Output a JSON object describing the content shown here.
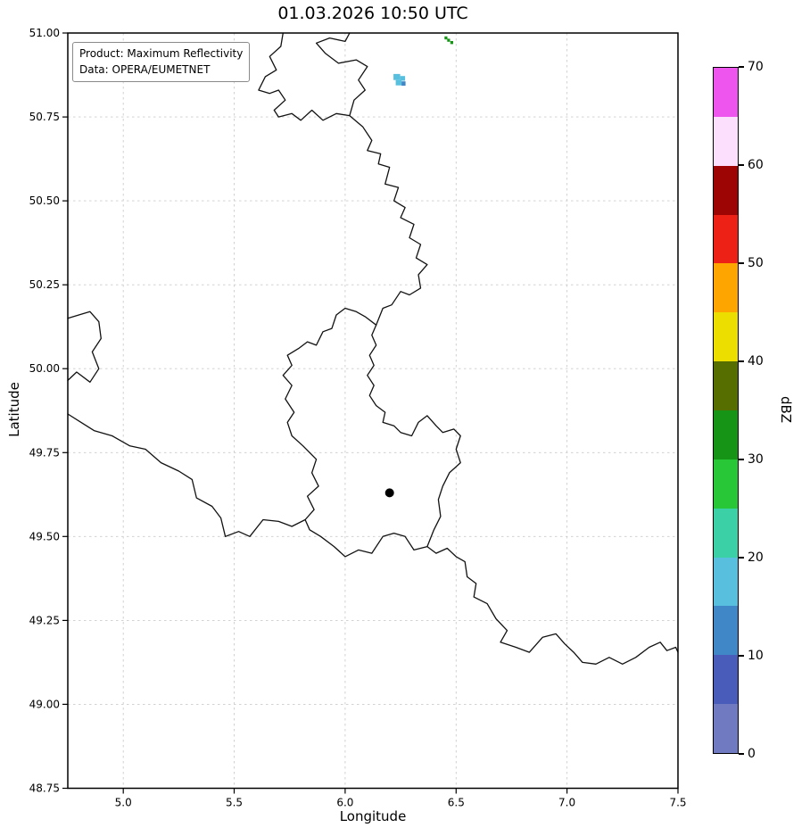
{
  "annotation": {
    "line1": "Product: Maximum Reflectivity",
    "line2": "Data: OPERA/EUMETNET"
  },
  "chart_data": {
    "type": "heatmap",
    "title": "01.03.2026 10:50 UTC",
    "xlabel": "Longitude",
    "ylabel": "Latitude",
    "xlim": [
      4.75,
      7.5
    ],
    "ylim": [
      48.75,
      51.0
    ],
    "grid": true,
    "xtick_values": [
      5.0,
      5.5,
      6.0,
      6.5,
      7.0,
      7.5
    ],
    "xtick_labels": [
      "5.0",
      "5.5",
      "6.0",
      "6.5",
      "7.0",
      "7.5"
    ],
    "ytick_values": [
      51.0,
      50.75,
      50.5,
      50.25,
      50.0,
      49.75,
      49.5,
      49.25,
      49.0,
      48.75
    ],
    "ytick_labels": [
      "51.00",
      "50.75",
      "50.50",
      "50.25",
      "50.00",
      "49.75",
      "49.50",
      "49.25",
      "49.00",
      "48.75"
    ],
    "colorbar": {
      "label": "dBZ",
      "min": 0,
      "max": 70,
      "band_size": 5,
      "tick_values": [
        0,
        10,
        20,
        30,
        40,
        50,
        60,
        70
      ],
      "colors": [
        "#707ac1",
        "#4a5cb9",
        "#3f87c6",
        "#58bfdf",
        "#3bd0a5",
        "#27c737",
        "#169416",
        "#566e00",
        "#ecdf00",
        "#ffa500",
        "#ee2116",
        "#9d0404",
        "#fcdffc",
        "#ee55ee"
      ]
    },
    "radar_site": {
      "lon": 6.2,
      "lat": 49.63
    },
    "echoes": [
      {
        "lon": 6.218,
        "lat": 50.878,
        "w": 0.03,
        "h": 0.018,
        "dbz": 16
      },
      {
        "lon": 6.248,
        "lat": 50.872,
        "w": 0.022,
        "h": 0.014,
        "dbz": 16
      },
      {
        "lon": 6.228,
        "lat": 50.86,
        "w": 0.026,
        "h": 0.016,
        "dbz": 16
      },
      {
        "lon": 6.254,
        "lat": 50.856,
        "w": 0.018,
        "h": 0.013,
        "dbz": 12
      },
      {
        "lon": 6.448,
        "lat": 50.99,
        "w": 0.013,
        "h": 0.009,
        "dbz": 32
      },
      {
        "lon": 6.46,
        "lat": 50.983,
        "w": 0.013,
        "h": 0.009,
        "dbz": 32
      },
      {
        "lon": 6.474,
        "lat": 50.976,
        "w": 0.013,
        "h": 0.009,
        "dbz": 32
      }
    ],
    "borders": [
      {
        "name": "belgium-netherlands",
        "points": [
          [
            5.72,
            51.0
          ],
          [
            5.71,
            50.96
          ],
          [
            5.66,
            50.93
          ],
          [
            5.69,
            50.89
          ],
          [
            5.64,
            50.87
          ],
          [
            5.61,
            50.83
          ],
          [
            5.66,
            50.82
          ],
          [
            5.7,
            50.83
          ],
          [
            5.73,
            50.8
          ],
          [
            5.68,
            50.77
          ],
          [
            5.7,
            50.75
          ],
          [
            5.76,
            50.76
          ],
          [
            5.8,
            50.74
          ],
          [
            5.85,
            50.77
          ],
          [
            5.9,
            50.74
          ],
          [
            5.96,
            50.76
          ],
          [
            6.02,
            50.754
          ]
        ]
      },
      {
        "name": "netherlands-germany",
        "points": [
          [
            6.02,
            50.754
          ],
          [
            6.04,
            50.8
          ],
          [
            6.09,
            50.83
          ],
          [
            6.06,
            50.86
          ],
          [
            6.1,
            50.9
          ],
          [
            6.05,
            50.92
          ],
          [
            5.97,
            50.91
          ],
          [
            5.91,
            50.94
          ],
          [
            5.87,
            50.97
          ],
          [
            5.93,
            50.985
          ],
          [
            6.0,
            50.975
          ],
          [
            6.02,
            51.0
          ]
        ]
      },
      {
        "name": "belgium-germany",
        "points": [
          [
            6.02,
            50.754
          ],
          [
            6.08,
            50.72
          ],
          [
            6.12,
            50.68
          ],
          [
            6.1,
            50.65
          ],
          [
            6.16,
            50.64
          ],
          [
            6.15,
            50.61
          ],
          [
            6.2,
            50.6
          ],
          [
            6.18,
            50.55
          ],
          [
            6.24,
            50.54
          ],
          [
            6.22,
            50.5
          ],
          [
            6.27,
            50.48
          ],
          [
            6.25,
            50.45
          ],
          [
            6.31,
            50.43
          ],
          [
            6.29,
            50.39
          ],
          [
            6.34,
            50.37
          ],
          [
            6.32,
            50.33
          ],
          [
            6.37,
            50.31
          ],
          [
            6.33,
            50.28
          ],
          [
            6.34,
            50.24
          ],
          [
            6.29,
            50.22
          ],
          [
            6.25,
            50.23
          ],
          [
            6.21,
            50.19
          ],
          [
            6.17,
            50.18
          ],
          [
            6.14,
            50.13
          ]
        ]
      },
      {
        "name": "luxembourg",
        "points": [
          [
            6.14,
            50.13
          ],
          [
            6.12,
            50.1
          ],
          [
            6.14,
            50.07
          ],
          [
            6.11,
            50.04
          ],
          [
            6.13,
            50.01
          ],
          [
            6.1,
            49.98
          ],
          [
            6.13,
            49.95
          ],
          [
            6.11,
            49.92
          ],
          [
            6.14,
            49.89
          ],
          [
            6.18,
            49.87
          ],
          [
            6.17,
            49.84
          ],
          [
            6.22,
            49.83
          ],
          [
            6.25,
            49.81
          ],
          [
            6.3,
            49.8
          ],
          [
            6.33,
            49.84
          ],
          [
            6.37,
            49.86
          ],
          [
            6.41,
            49.83
          ],
          [
            6.44,
            49.81
          ],
          [
            6.49,
            49.82
          ],
          [
            6.52,
            49.8
          ],
          [
            6.5,
            49.76
          ],
          [
            6.52,
            49.72
          ],
          [
            6.47,
            49.69
          ],
          [
            6.44,
            49.65
          ],
          [
            6.42,
            49.61
          ],
          [
            6.43,
            49.56
          ],
          [
            6.4,
            49.52
          ],
          [
            6.37,
            49.47
          ],
          [
            6.31,
            49.46
          ],
          [
            6.27,
            49.5
          ],
          [
            6.22,
            49.51
          ],
          [
            6.17,
            49.5
          ],
          [
            6.12,
            49.45
          ],
          [
            6.06,
            49.46
          ],
          [
            6.0,
            49.44
          ],
          [
            5.95,
            49.47
          ],
          [
            5.89,
            49.5
          ],
          [
            5.84,
            49.52
          ],
          [
            5.82,
            49.55
          ],
          [
            5.86,
            49.58
          ],
          [
            5.83,
            49.62
          ],
          [
            5.88,
            49.65
          ],
          [
            5.85,
            49.69
          ],
          [
            5.87,
            49.73
          ],
          [
            5.81,
            49.77
          ],
          [
            5.76,
            49.8
          ],
          [
            5.74,
            49.84
          ],
          [
            5.77,
            49.87
          ],
          [
            5.73,
            49.91
          ],
          [
            5.76,
            49.95
          ],
          [
            5.72,
            49.98
          ],
          [
            5.76,
            50.01
          ],
          [
            5.74,
            50.04
          ],
          [
            5.79,
            50.06
          ],
          [
            5.83,
            50.08
          ],
          [
            5.87,
            50.07
          ],
          [
            5.9,
            50.11
          ],
          [
            5.94,
            50.12
          ],
          [
            5.96,
            50.16
          ],
          [
            6.0,
            50.18
          ],
          [
            6.05,
            50.17
          ],
          [
            6.09,
            50.155
          ],
          [
            6.14,
            50.13
          ]
        ]
      },
      {
        "name": "france-belgium-givet",
        "points": [
          [
            4.75,
            50.15
          ],
          [
            4.8,
            50.16
          ],
          [
            4.85,
            50.17
          ],
          [
            4.89,
            50.14
          ],
          [
            4.9,
            50.09
          ],
          [
            4.86,
            50.05
          ],
          [
            4.89,
            50.0
          ],
          [
            4.85,
            49.96
          ],
          [
            4.79,
            49.99
          ],
          [
            4.75,
            49.965
          ]
        ]
      },
      {
        "name": "france-belgium",
        "points": [
          [
            4.75,
            49.865
          ],
          [
            4.81,
            49.84
          ],
          [
            4.87,
            49.815
          ],
          [
            4.95,
            49.8
          ],
          [
            5.03,
            49.77
          ],
          [
            5.1,
            49.76
          ],
          [
            5.17,
            49.72
          ],
          [
            5.25,
            49.695
          ],
          [
            5.31,
            49.67
          ],
          [
            5.33,
            49.615
          ],
          [
            5.4,
            49.59
          ],
          [
            5.44,
            49.555
          ],
          [
            5.46,
            49.5
          ],
          [
            5.52,
            49.515
          ],
          [
            5.57,
            49.5
          ],
          [
            5.63,
            49.55
          ],
          [
            5.7,
            49.545
          ],
          [
            5.76,
            49.53
          ],
          [
            5.82,
            49.55
          ]
        ]
      },
      {
        "name": "france-germany",
        "points": [
          [
            6.37,
            49.47
          ],
          [
            6.41,
            49.45
          ],
          [
            6.46,
            49.465
          ],
          [
            6.5,
            49.44
          ],
          [
            6.54,
            49.425
          ],
          [
            6.55,
            49.38
          ],
          [
            6.59,
            49.36
          ],
          [
            6.58,
            49.32
          ],
          [
            6.64,
            49.3
          ],
          [
            6.68,
            49.255
          ],
          [
            6.73,
            49.22
          ],
          [
            6.7,
            49.185
          ],
          [
            6.77,
            49.17
          ],
          [
            6.83,
            49.155
          ],
          [
            6.89,
            49.2
          ],
          [
            6.95,
            49.21
          ],
          [
            6.99,
            49.18
          ],
          [
            7.03,
            49.155
          ],
          [
            7.07,
            49.125
          ],
          [
            7.13,
            49.12
          ],
          [
            7.19,
            49.14
          ],
          [
            7.25,
            49.12
          ],
          [
            7.31,
            49.14
          ],
          [
            7.37,
            49.17
          ],
          [
            7.42,
            49.185
          ],
          [
            7.45,
            49.16
          ],
          [
            7.49,
            49.17
          ],
          [
            7.5,
            49.155
          ]
        ]
      }
    ]
  }
}
